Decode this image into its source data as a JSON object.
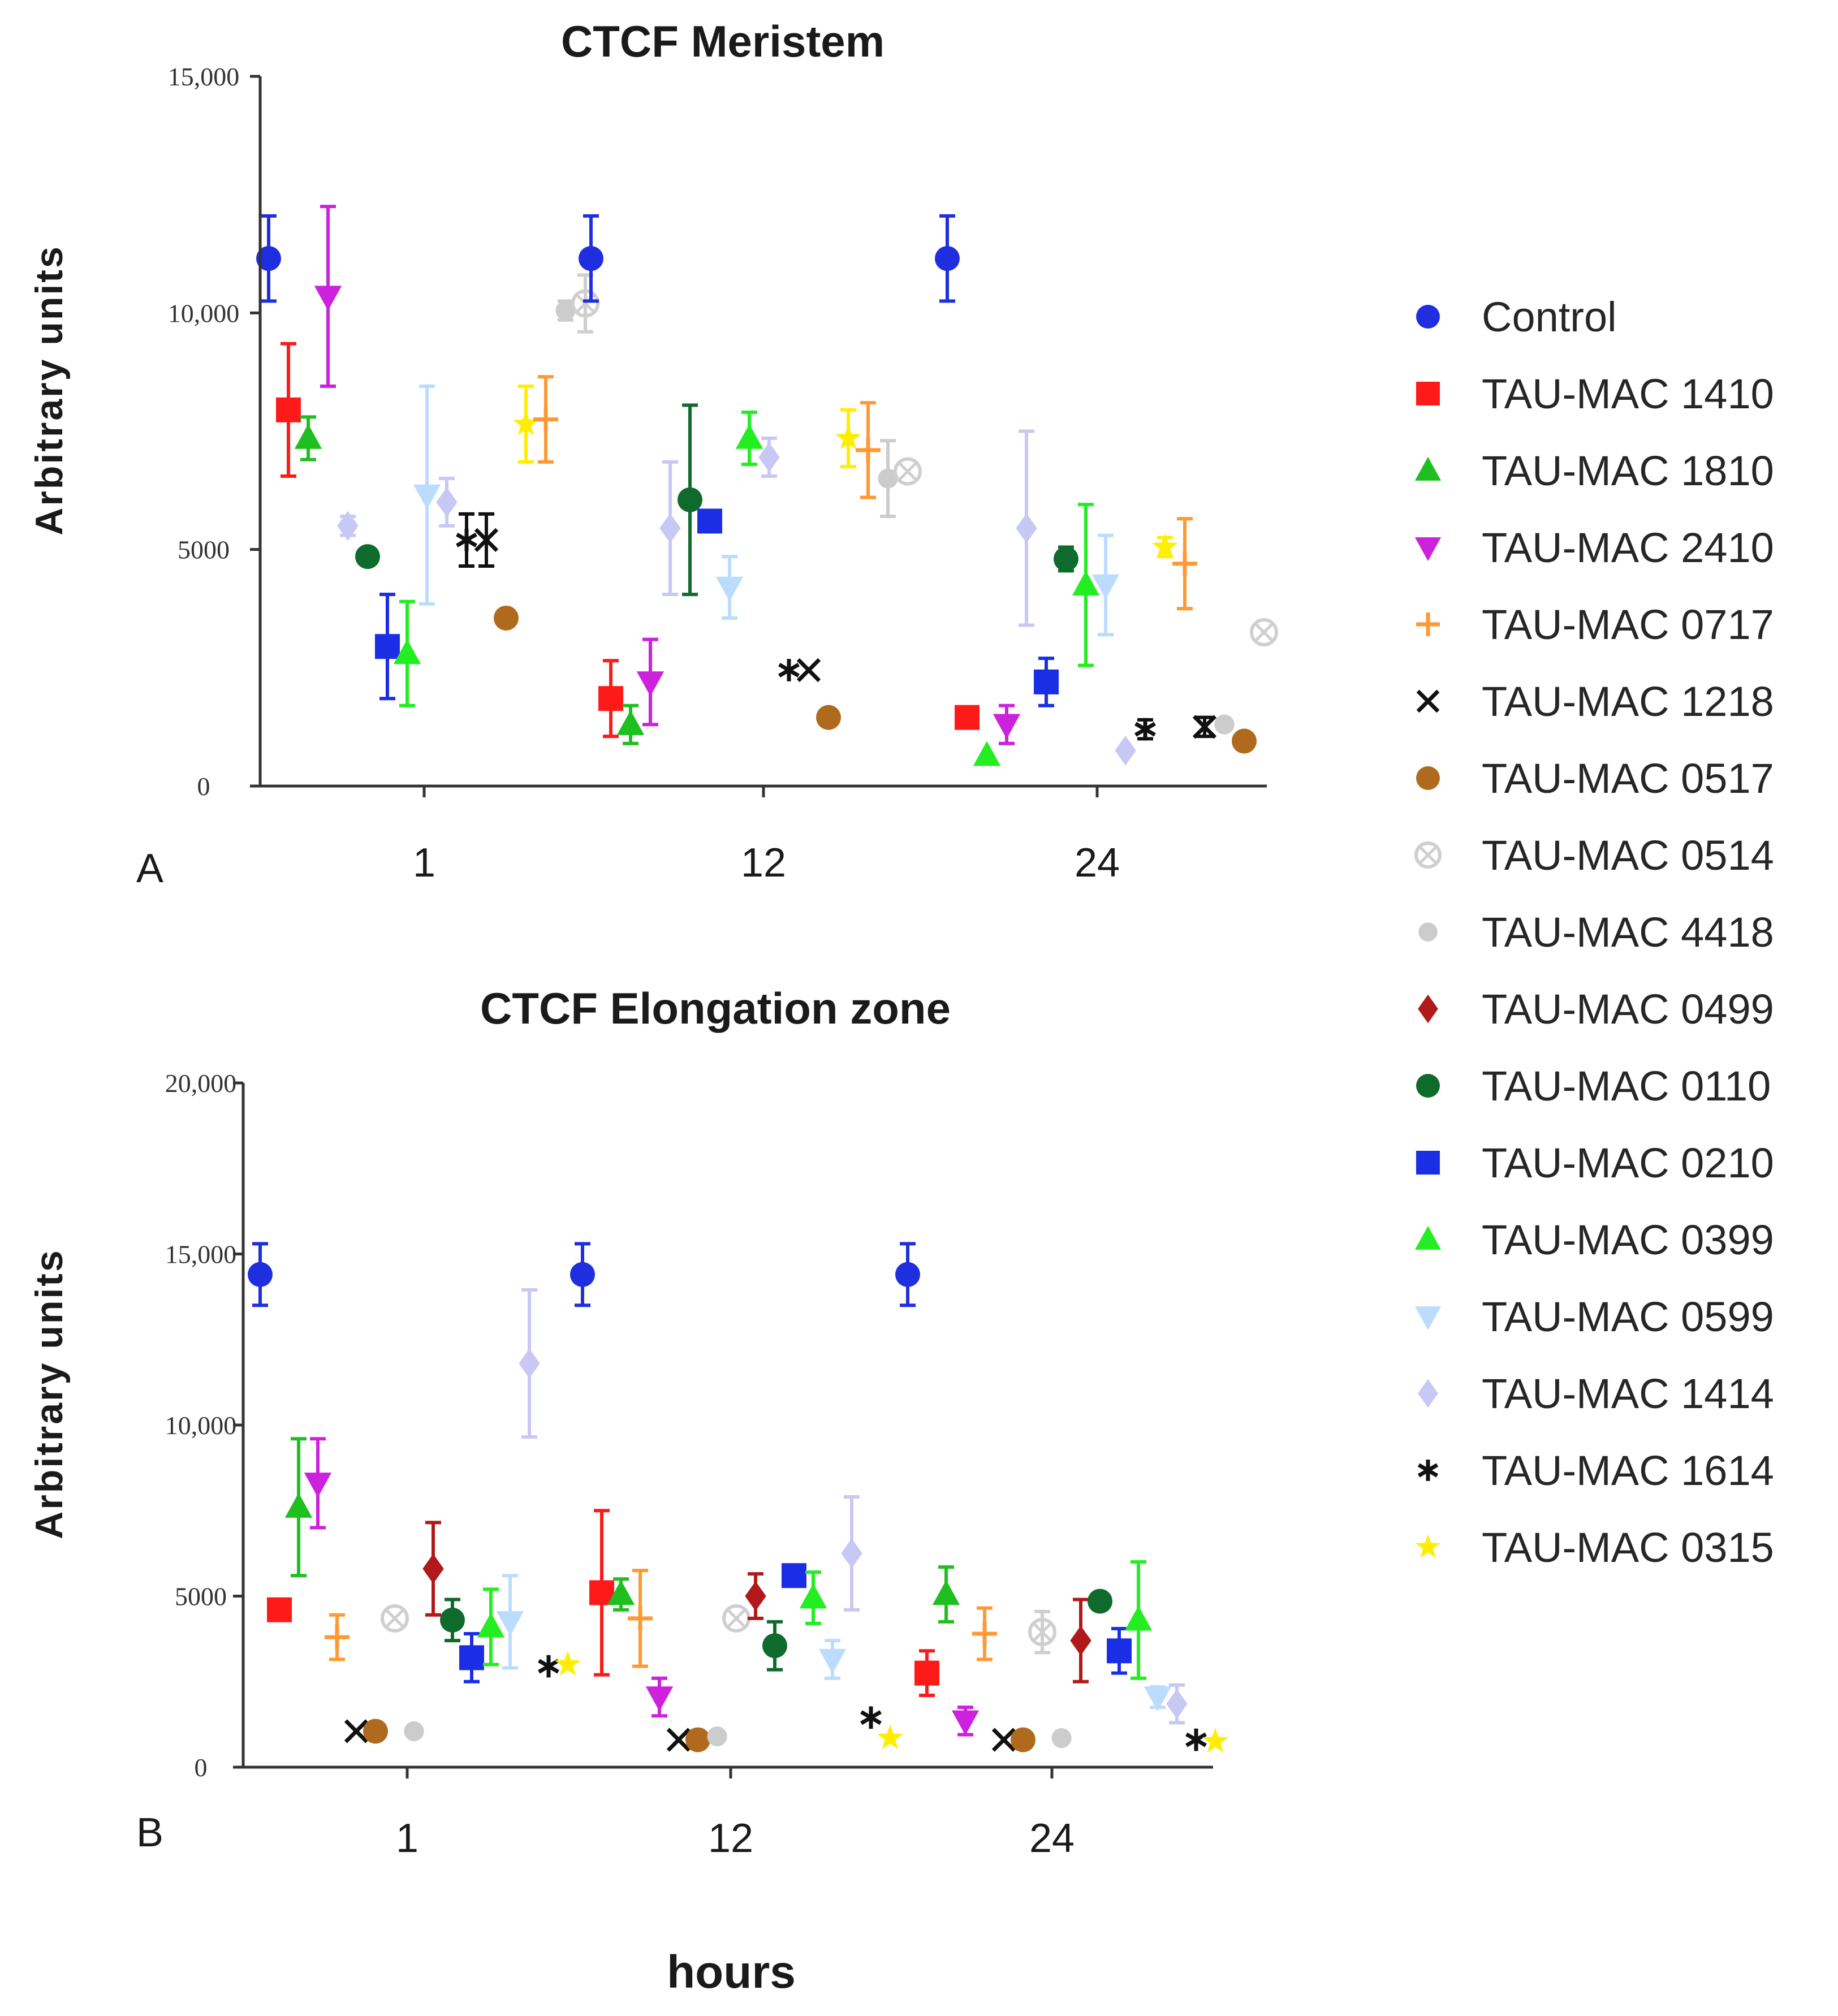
{
  "xlabel": "hours",
  "chart_data": [
    {
      "panel": "A",
      "type": "scatter",
      "title": "CTCF Meristem",
      "ylabel": "Arbitrary units",
      "ylim": [
        0,
        15000
      ],
      "yticks": [
        0,
        5000,
        10000,
        15000
      ],
      "ytick_labels": [
        "0",
        "5000",
        "10,000",
        "15,000"
      ],
      "categories": [
        "1",
        "12",
        "24"
      ],
      "groups": [
        {
          "label": "1",
          "points": [
            {
              "series": "Control",
              "y": 11150,
              "err": 900
            },
            {
              "series": "TAU-MAC 1410",
              "y": 7950,
              "err": 1400
            },
            {
              "series": "TAU-MAC 1810",
              "y": 7350,
              "err": 450
            },
            {
              "series": "TAU-MAC 2410",
              "y": 10350,
              "err": 1900
            },
            {
              "series": "TAU-MAC 1414",
              "y": 5500,
              "err": 200
            },
            {
              "series": "TAU-MAC 0110",
              "y": 4850,
              "err": 0
            },
            {
              "series": "TAU-MAC 0210",
              "y": 2950,
              "err": 1100
            },
            {
              "series": "TAU-MAC 0399",
              "y": 2800,
              "err": 1100
            },
            {
              "series": "TAU-MAC 0599",
              "y": 6150,
              "err": 2300
            },
            {
              "series": "TAU-MAC 1414",
              "y": 6000,
              "err": 500
            },
            {
              "series": "TAU-MAC 1614",
              "y": 5200,
              "err": 550
            },
            {
              "series": "TAU-MAC 1218",
              "y": 5200,
              "err": 550
            },
            {
              "series": "TAU-MAC 0517",
              "y": 3550,
              "err": 0
            },
            {
              "series": "TAU-MAC 0315",
              "y": 7650,
              "err": 800
            },
            {
              "series": "TAU-MAC 0717",
              "y": 7750,
              "err": 900
            },
            {
              "series": "TAU-MAC 4418",
              "y": 10050,
              "err": 200
            },
            {
              "series": "TAU-MAC 0514",
              "y": 10200,
              "err": 600
            }
          ]
        },
        {
          "label": "12",
          "points": [
            {
              "series": "Control",
              "y": 11150,
              "err": 900
            },
            {
              "series": "TAU-MAC 1410",
              "y": 1850,
              "err": 800
            },
            {
              "series": "TAU-MAC 1810",
              "y": 1300,
              "err": 400
            },
            {
              "series": "TAU-MAC 2410",
              "y": 2200,
              "err": 900
            },
            {
              "series": "TAU-MAC 1414",
              "y": 5450,
              "err": 1400
            },
            {
              "series": "TAU-MAC 0110",
              "y": 6050,
              "err": 2000
            },
            {
              "series": "TAU-MAC 0210",
              "y": 5600,
              "err": 0
            },
            {
              "series": "TAU-MAC 0599",
              "y": 4200,
              "err": 650
            },
            {
              "series": "TAU-MAC 0399",
              "y": 7350,
              "err": 550
            },
            {
              "series": "TAU-MAC 1414",
              "y": 6950,
              "err": 400
            },
            {
              "series": "TAU-MAC 1614",
              "y": 2450,
              "err": 0
            },
            {
              "series": "TAU-MAC 1218",
              "y": 2450,
              "err": 0
            },
            {
              "series": "TAU-MAC 0517",
              "y": 1450,
              "err": 0
            },
            {
              "series": "TAU-MAC 0315",
              "y": 7350,
              "err": 600
            },
            {
              "series": "TAU-MAC 0717",
              "y": 7100,
              "err": 1000
            },
            {
              "series": "TAU-MAC 4418",
              "y": 6500,
              "err": 800
            },
            {
              "series": "TAU-MAC 0514",
              "y": 6650,
              "err": 0
            }
          ]
        },
        {
          "label": "24",
          "points": [
            {
              "series": "Control",
              "y": 11150,
              "err": 900
            },
            {
              "series": "TAU-MAC 1410",
              "y": 1450,
              "err": 0
            },
            {
              "series": "TAU-MAC 0399",
              "y": 650,
              "err": 0
            },
            {
              "series": "TAU-MAC 2410",
              "y": 1300,
              "err": 400
            },
            {
              "series": "TAU-MAC 1414",
              "y": 5450,
              "err": 2050
            },
            {
              "series": "TAU-MAC 0210",
              "y": 2200,
              "err": 500
            },
            {
              "series": "TAU-MAC 0110",
              "y": 4800,
              "err": 250
            },
            {
              "series": "TAU-MAC 0399",
              "y": 4250,
              "err": 1700
            },
            {
              "series": "TAU-MAC 0599",
              "y": 4250,
              "err": 1050
            },
            {
              "series": "TAU-MAC 1414",
              "y": 750,
              "err": 0
            },
            {
              "series": "TAU-MAC 1614",
              "y": 1200,
              "err": 200
            },
            {
              "series": "TAU-MAC 0315",
              "y": 5050,
              "err": 200
            },
            {
              "series": "TAU-MAC 0717",
              "y": 4700,
              "err": 950
            },
            {
              "series": "TAU-MAC 1218",
              "y": 1250,
              "err": 200
            },
            {
              "series": "TAU-MAC 4418",
              "y": 1300,
              "err": 0
            },
            {
              "series": "TAU-MAC 0517",
              "y": 950,
              "err": 0
            },
            {
              "series": "TAU-MAC 0514",
              "y": 3250,
              "err": 0
            }
          ]
        }
      ]
    },
    {
      "panel": "B",
      "type": "scatter",
      "title": "CTCF Elongation zone",
      "ylabel": "Arbitrary units",
      "ylim": [
        0,
        20000
      ],
      "yticks": [
        0,
        5000,
        10000,
        15000,
        20000
      ],
      "ytick_labels": [
        "0",
        "5000",
        "10,000",
        "15,000",
        "20,000"
      ],
      "categories": [
        "1",
        "12",
        "24"
      ],
      "groups": [
        {
          "label": "1",
          "points": [
            {
              "series": "Control",
              "y": 14400,
              "err": 900
            },
            {
              "series": "TAU-MAC 1410",
              "y": 4600,
              "err": 0
            },
            {
              "series": "TAU-MAC 1810",
              "y": 7600,
              "err": 2000
            },
            {
              "series": "TAU-MAC 2410",
              "y": 8300,
              "err": 1300
            },
            {
              "series": "TAU-MAC 0717",
              "y": 3800,
              "err": 650
            },
            {
              "series": "TAU-MAC 1218",
              "y": 1050,
              "err": 0
            },
            {
              "series": "TAU-MAC 0517",
              "y": 1050,
              "err": 0
            },
            {
              "series": "TAU-MAC 0514",
              "y": 4350,
              "err": 0
            },
            {
              "series": "TAU-MAC 4418",
              "y": 1050,
              "err": 0
            },
            {
              "series": "TAU-MAC 0499",
              "y": 5800,
              "err": 1350
            },
            {
              "series": "TAU-MAC 0110",
              "y": 4300,
              "err": 600
            },
            {
              "series": "TAU-MAC 0210",
              "y": 3200,
              "err": 700
            },
            {
              "series": "TAU-MAC 0399",
              "y": 4100,
              "err": 1100
            },
            {
              "series": "TAU-MAC 0599",
              "y": 4250,
              "err": 1350
            },
            {
              "series": "TAU-MAC 1414",
              "y": 11800,
              "err": 2150
            },
            {
              "series": "TAU-MAC 1614",
              "y": 2950,
              "err": 0
            },
            {
              "series": "TAU-MAC 0315",
              "y": 3000,
              "err": 0
            }
          ]
        },
        {
          "label": "12",
          "points": [
            {
              "series": "Control",
              "y": 14400,
              "err": 900
            },
            {
              "series": "TAU-MAC 1410",
              "y": 5100,
              "err": 2400
            },
            {
              "series": "TAU-MAC 1810",
              "y": 5050,
              "err": 450
            },
            {
              "series": "TAU-MAC 0717",
              "y": 4350,
              "err": 1400
            },
            {
              "series": "TAU-MAC 2410",
              "y": 2050,
              "err": 550
            },
            {
              "series": "TAU-MAC 1218",
              "y": 800,
              "err": 0
            },
            {
              "series": "TAU-MAC 0517",
              "y": 800,
              "err": 0
            },
            {
              "series": "TAU-MAC 4418",
              "y": 900,
              "err": 0
            },
            {
              "series": "TAU-MAC 0514",
              "y": 4350,
              "err": 0
            },
            {
              "series": "TAU-MAC 0499",
              "y": 5000,
              "err": 650
            },
            {
              "series": "TAU-MAC 0110",
              "y": 3550,
              "err": 700
            },
            {
              "series": "TAU-MAC 0210",
              "y": 5600,
              "err": 0
            },
            {
              "series": "TAU-MAC 0399",
              "y": 4950,
              "err": 750
            },
            {
              "series": "TAU-MAC 0599",
              "y": 3150,
              "err": 550
            },
            {
              "series": "TAU-MAC 1414",
              "y": 6250,
              "err": 1650
            },
            {
              "series": "TAU-MAC 1614",
              "y": 1450,
              "err": 0
            },
            {
              "series": "TAU-MAC 0315",
              "y": 850,
              "err": 0
            }
          ]
        },
        {
          "label": "24",
          "points": [
            {
              "series": "Control",
              "y": 14400,
              "err": 900
            },
            {
              "series": "TAU-MAC 1410",
              "y": 2750,
              "err": 650
            },
            {
              "series": "TAU-MAC 1810",
              "y": 5050,
              "err": 800
            },
            {
              "series": "TAU-MAC 2410",
              "y": 1350,
              "err": 400
            },
            {
              "series": "TAU-MAC 0717",
              "y": 3900,
              "err": 750
            },
            {
              "series": "TAU-MAC 1218",
              "y": 800,
              "err": 0
            },
            {
              "series": "TAU-MAC 0517",
              "y": 800,
              "err": 0
            },
            {
              "series": "TAU-MAC 0514",
              "y": 3950,
              "err": 600
            },
            {
              "series": "TAU-MAC 4418",
              "y": 850,
              "err": 0
            },
            {
              "series": "TAU-MAC 0499",
              "y": 3700,
              "err": 1200
            },
            {
              "series": "TAU-MAC 0110",
              "y": 4850,
              "err": 0
            },
            {
              "series": "TAU-MAC 0210",
              "y": 3400,
              "err": 650
            },
            {
              "series": "TAU-MAC 0399",
              "y": 4300,
              "err": 1700
            },
            {
              "series": "TAU-MAC 0599",
              "y": 2050,
              "err": 300
            },
            {
              "series": "TAU-MAC 1414",
              "y": 1850,
              "err": 550
            },
            {
              "series": "TAU-MAC 1614",
              "y": 800,
              "err": 0
            },
            {
              "series": "TAU-MAC 0315",
              "y": 750,
              "err": 0
            }
          ]
        }
      ]
    }
  ],
  "legend": [
    {
      "name": "Control",
      "color": "#1f2fe0",
      "marker": "circle"
    },
    {
      "name": "TAU-MAC 1410",
      "color": "#ff1a1a",
      "marker": "square"
    },
    {
      "name": "TAU-MAC 1810",
      "color": "#1fbf1f",
      "marker": "triangle-up"
    },
    {
      "name": "TAU-MAC 2410",
      "color": "#cc22dd",
      "marker": "triangle-down"
    },
    {
      "name": "TAU-MAC 0717",
      "color": "#ff9933",
      "marker": "plus"
    },
    {
      "name": "TAU-MAC 1218",
      "color": "#111111",
      "marker": "x"
    },
    {
      "name": "TAU-MAC 0517",
      "color": "#b06a1e",
      "marker": "circle"
    },
    {
      "name": "TAU-MAC 0514",
      "color": "#cfcfcf",
      "marker": "circle-x"
    },
    {
      "name": "TAU-MAC 4418",
      "color": "#cccccc",
      "marker": "circle-small"
    },
    {
      "name": "TAU-MAC 0499",
      "color": "#b01a1a",
      "marker": "diamond"
    },
    {
      "name": "TAU-MAC 0110",
      "color": "#0f6b2c",
      "marker": "circle"
    },
    {
      "name": "TAU-MAC 0210",
      "color": "#1a2ee6",
      "marker": "square"
    },
    {
      "name": "TAU-MAC 0399",
      "color": "#22ee22",
      "marker": "triangle-up"
    },
    {
      "name": "TAU-MAC 0599",
      "color": "#bcdcff",
      "marker": "triangle-down"
    },
    {
      "name": "TAU-MAC 1414",
      "color": "#c8c8f4",
      "marker": "diamond"
    },
    {
      "name": "TAU-MAC 1614",
      "color": "#111111",
      "marker": "asterisk"
    },
    {
      "name": "TAU-MAC 0315",
      "color": "#ffee00",
      "marker": "star"
    }
  ],
  "series_colors": {
    "Control": "#1f2fe0",
    "TAU-MAC 1410": "#ff1a1a",
    "TAU-MAC 1810": "#1fbf1f",
    "TAU-MAC 2410": "#cc22dd",
    "TAU-MAC 0717": "#ff9933",
    "TAU-MAC 1218": "#111111",
    "TAU-MAC 0517": "#b06a1e",
    "TAU-MAC 0514": "#cfcfcf",
    "TAU-MAC 4418": "#cccccc",
    "TAU-MAC 0499": "#b01a1a",
    "TAU-MAC 0110": "#0f6b2c",
    "TAU-MAC 0210": "#1a2ee6",
    "TAU-MAC 0399": "#22ee22",
    "TAU-MAC 0599": "#bcdcff",
    "TAU-MAC 1414": "#c8c8f4",
    "TAU-MAC 1614": "#111111",
    "TAU-MAC 0315": "#ffee00"
  }
}
